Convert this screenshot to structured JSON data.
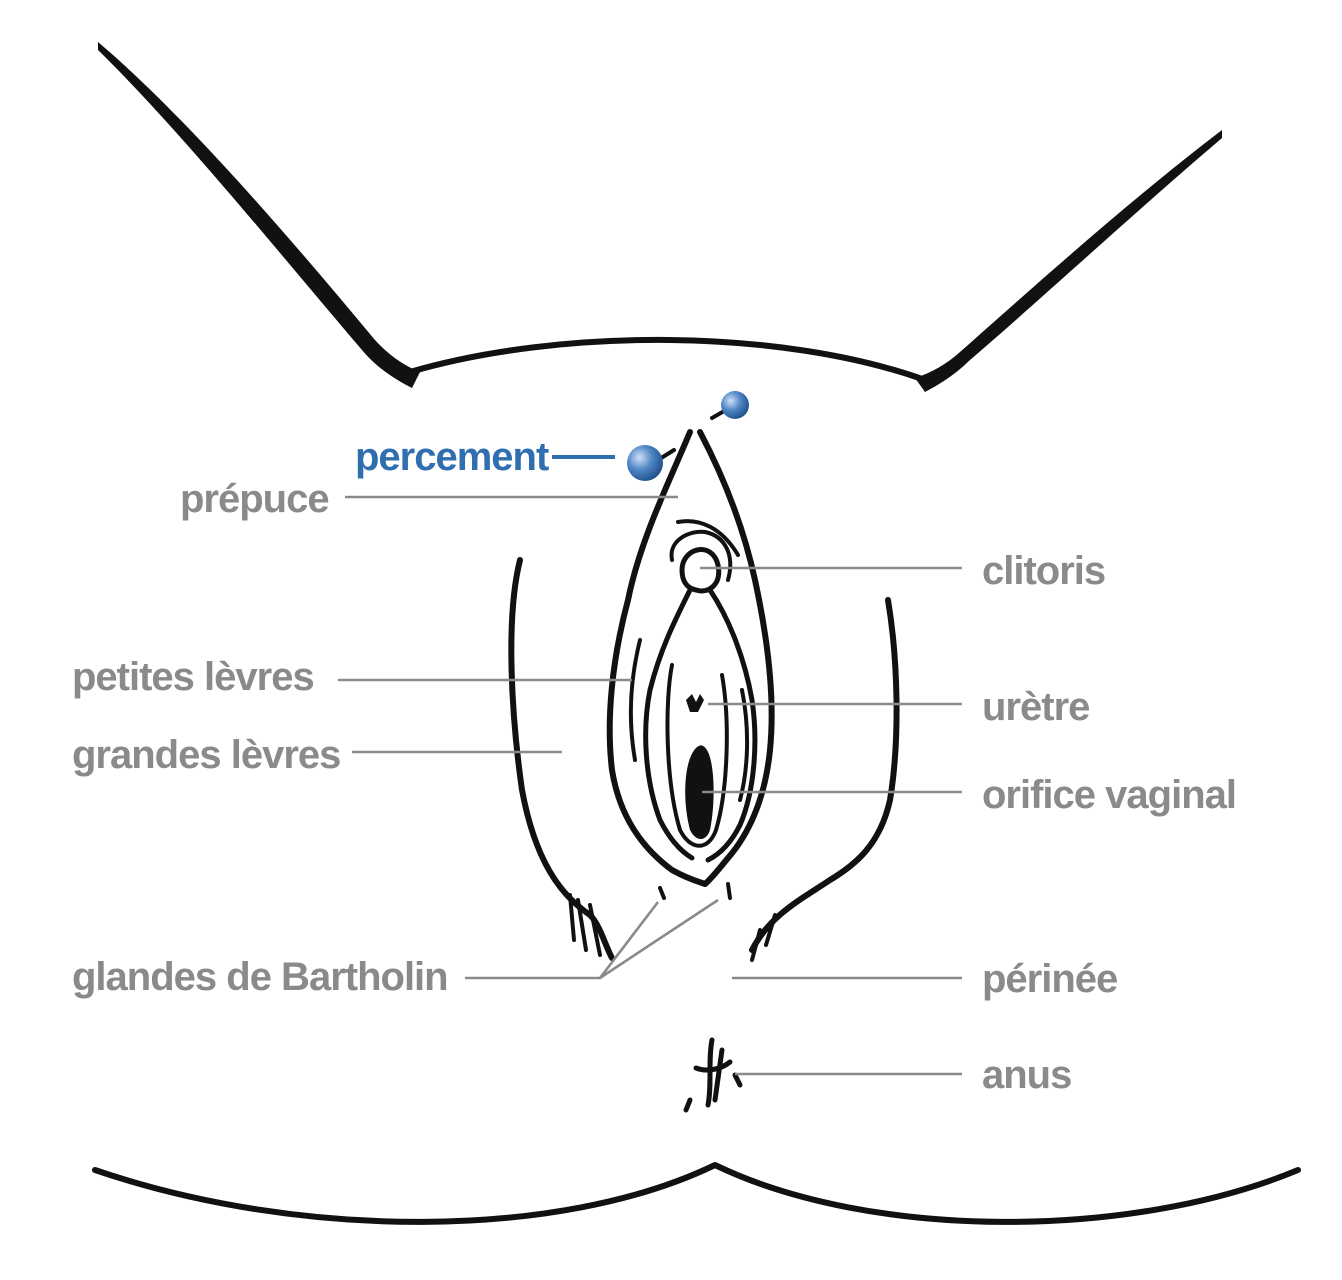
{
  "colors": {
    "label": "#8a8a8a",
    "accent": "#2f6fb0",
    "ink": "#111111",
    "background": "#ffffff"
  },
  "labels": {
    "percement": "percement",
    "prepuce": "prépuce",
    "clitoris": "clitoris",
    "petites_levres": "petites lèvres",
    "uretre": "urètre",
    "grandes_levres": "grandes lèvres",
    "orifice_vaginal": "orifice vaginal",
    "glandes_bartholin": "glandes de Bartholin",
    "perinee": "périnée",
    "anus": "anus"
  }
}
